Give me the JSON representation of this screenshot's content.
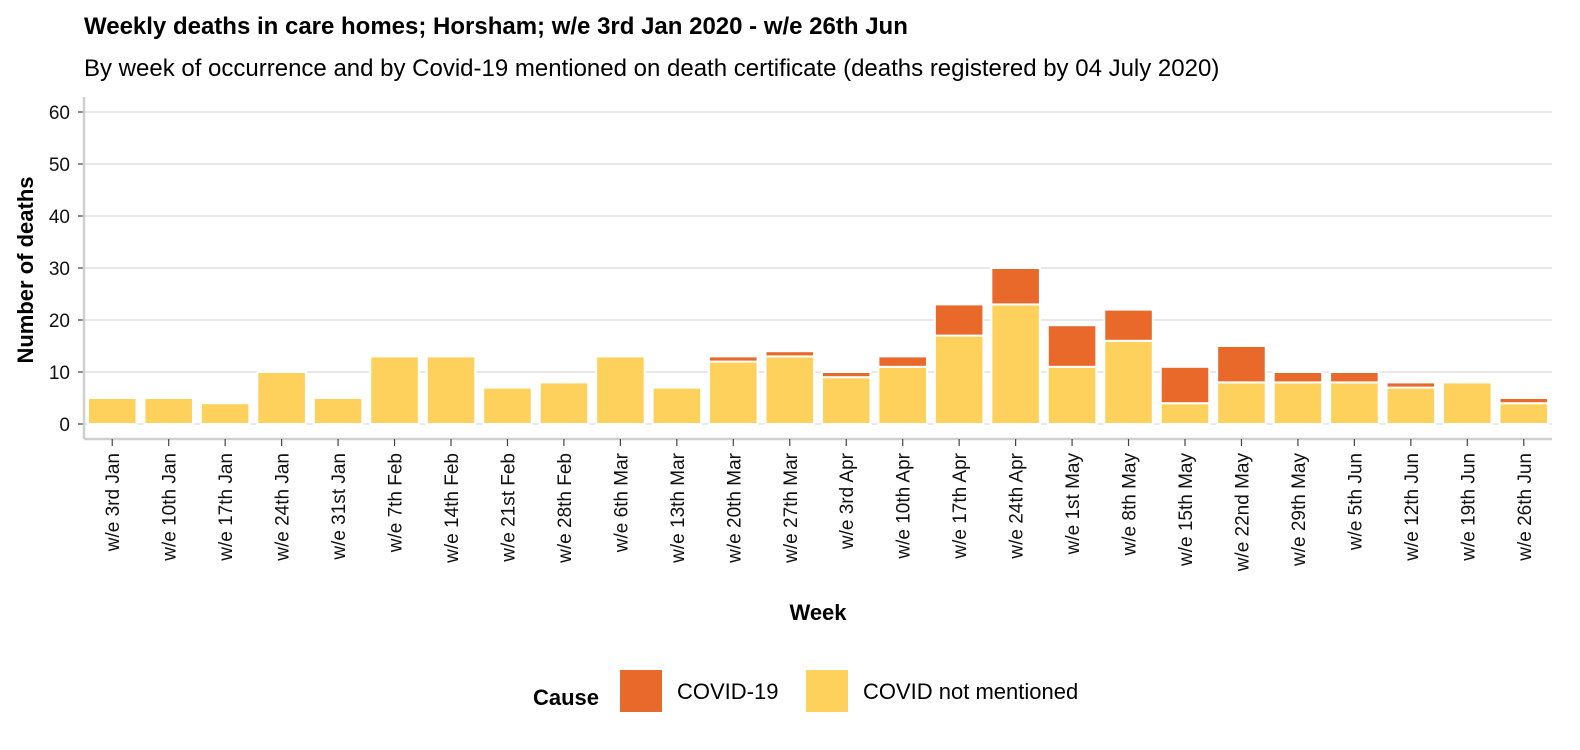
{
  "chart_data": {
    "type": "bar",
    "stacked": true,
    "title": "Weekly deaths in care homes; Horsham; w/e 3rd Jan 2020 - w/e 26th Jun",
    "subtitle": "By week of occurrence and by Covid-19 mentioned on death certificate (deaths registered by 04 July 2020)",
    "xlabel": "Week",
    "ylabel": "Number of deaths",
    "ylim": [
      0,
      62
    ],
    "yticks": [
      "0",
      "10",
      "20",
      "30",
      "40",
      "50",
      "60"
    ],
    "grid": "horizontal",
    "legend_position": "bottom",
    "legend_title": "Cause",
    "categories": [
      "w/e 3rd Jan",
      "w/e 10th Jan",
      "w/e 17th Jan",
      "w/e 24th Jan",
      "w/e 31st Jan",
      "w/e 7th Feb",
      "w/e 14th Feb",
      "w/e 21st Feb",
      "w/e 28th Feb",
      "w/e 6th Mar",
      "w/e 13th Mar",
      "w/e 20th Mar",
      "w/e 27th Mar",
      "w/e 3rd Apr",
      "w/e 10th Apr",
      "w/e 17th Apr",
      "w/e 24th Apr",
      "w/e 1st May",
      "w/e 8th May",
      "w/e 15th May",
      "w/e 22nd May",
      "w/e 29th May",
      "w/e 5th Jun",
      "w/e 12th Jun",
      "w/e 19th Jun",
      "w/e 26th Jun"
    ],
    "series": [
      {
        "name": "COVID not mentioned",
        "color": "#FDD15B",
        "values": [
          5,
          5,
          4,
          10,
          5,
          13,
          13,
          7,
          8,
          13,
          7,
          12,
          13,
          9,
          11,
          17,
          23,
          11,
          16,
          4,
          8,
          8,
          8,
          7,
          8,
          4
        ]
      },
      {
        "name": "COVID-19",
        "color": "#E8692A",
        "values": [
          0,
          0,
          0,
          0,
          0,
          0,
          0,
          0,
          0,
          0,
          0,
          1,
          1,
          1,
          2,
          6,
          7,
          8,
          6,
          7,
          7,
          2,
          2,
          1,
          0,
          1
        ]
      }
    ],
    "legend_order": [
      "COVID-19",
      "COVID not mentioned"
    ]
  }
}
